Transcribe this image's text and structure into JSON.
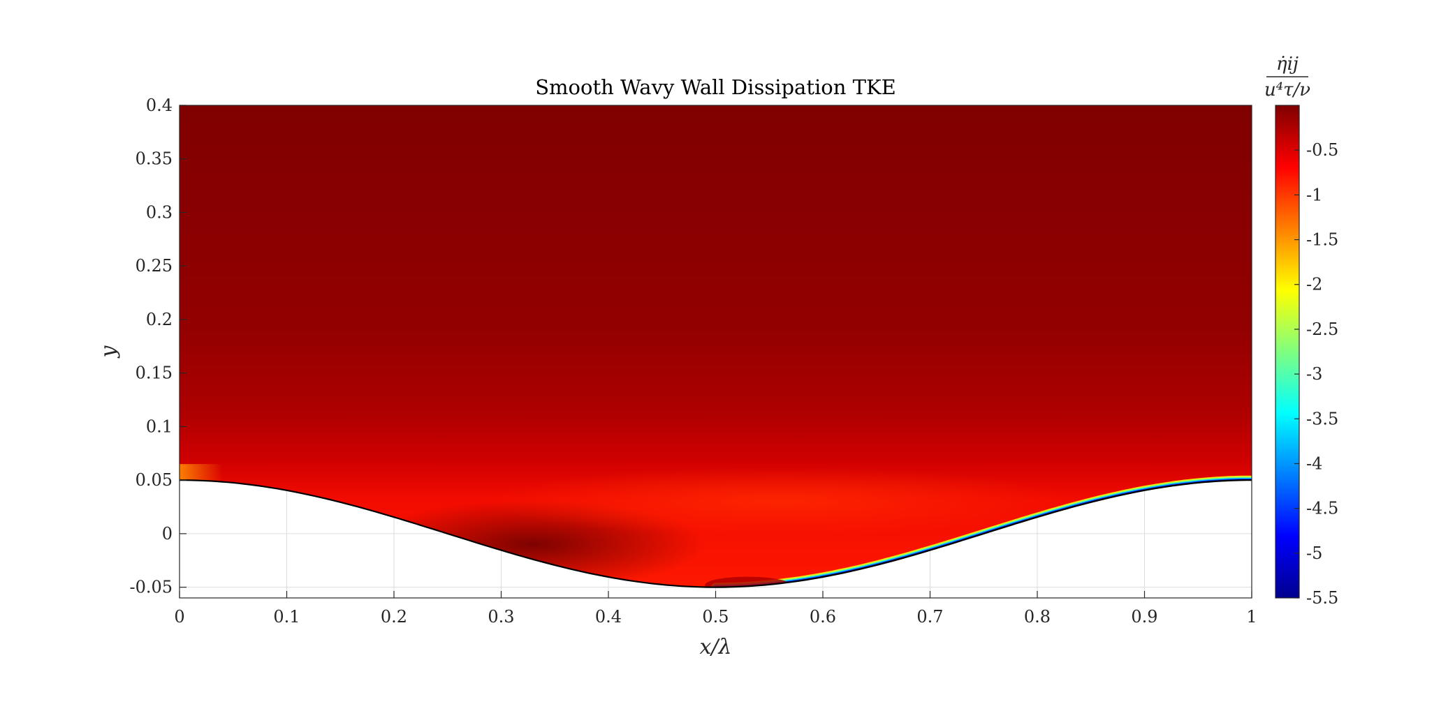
{
  "chart_data": {
    "type": "heatmap",
    "title": "Smooth Wavy Wall Dissipation TKE",
    "xlabel": "x/λ",
    "ylabel": "y",
    "xlim": [
      0,
      1
    ],
    "ylim": [
      -0.06,
      0.4
    ],
    "x_ticks": [
      "0",
      "0.1",
      "0.2",
      "0.3",
      "0.4",
      "0.5",
      "0.6",
      "0.7",
      "0.8",
      "0.9",
      "1"
    ],
    "y_ticks": [
      "-0.05",
      "0",
      "0.05",
      "0.1",
      "0.15",
      "0.2",
      "0.25",
      "0.3",
      "0.35",
      "0.4"
    ],
    "grid": true,
    "colormap": "jet",
    "colorbar": {
      "label_numerator": "η̇ij",
      "label_denominator": "u⁴τ/ν",
      "range": [
        -5.5,
        0
      ],
      "ticks": [
        "-0.5",
        "-1",
        "-1.5",
        "-2",
        "-2.5",
        "-3",
        "-3.5",
        "-4",
        "-4.5",
        "-5",
        "-5.5"
      ]
    },
    "wall": {
      "shape": "cosine",
      "amplitude": 0.05,
      "mean": 0,
      "crest_x": [
        0,
        1
      ],
      "trough_x": 0.5
    },
    "field_description_values": {
      "freestream_value": -0.05,
      "near_wall_band_value": -0.8,
      "lee_side_value": -0.02,
      "windward_wall_min_value": -5.5
    }
  }
}
